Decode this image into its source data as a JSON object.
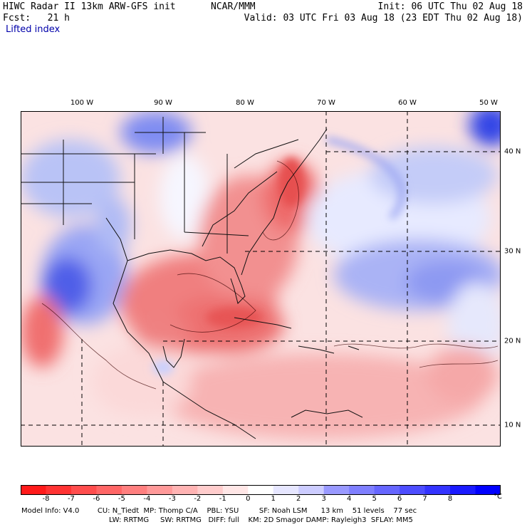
{
  "header": {
    "title": "HIWC Radar II 13km ARW-GFS init",
    "center": "NCAR/MMM",
    "init": "Init: 06 UTC Thu 02 Aug 18",
    "fcst": "Fcst:   21 h",
    "valid": "Valid: 03 UTC Fri 03 Aug 18 (23 EDT Thu 02 Aug 18)",
    "field": "Lifted index"
  },
  "map": {
    "lon_labels": [
      "100 W",
      "90 W",
      "80 W",
      "70 W",
      "60 W",
      "50 W"
    ],
    "lat_labels": [
      "40 N",
      "30 N",
      "20 N",
      "10 N"
    ]
  },
  "colorbar": {
    "labels": [
      "-8",
      "-7",
      "-6",
      "-5",
      "-4",
      "-3",
      "-2",
      "-1",
      "0",
      "1",
      "2",
      "3",
      "4",
      "5",
      "6",
      "7",
      "8"
    ],
    "unit": "°C",
    "colors": [
      "#ff1a1a",
      "#ff3333",
      "#ff4d4d",
      "#ff6666",
      "#ff7f7f",
      "#ff9999",
      "#ffb3b3",
      "#ffcccc",
      "#ffe6e6",
      "#ffffff",
      "#e6e6ff",
      "#ccccff",
      "#9999ff",
      "#7f7fff",
      "#6666ff",
      "#4d4dff",
      "#3333ff",
      "#1a1aff",
      "#0000ff"
    ]
  },
  "footer": {
    "line1": "Model Info: V4.0        CU: N_Tiedt  MP: Thomp C/A    PBL: YSU         SF: Noah LSM      13 km    51 levels    77 sec",
    "line2": "LW: RRTMG     SW: RRTMG   DIFF: full    KM: 2D Smagor DAMP: Rayleigh3  SFLAY: MM5"
  }
}
